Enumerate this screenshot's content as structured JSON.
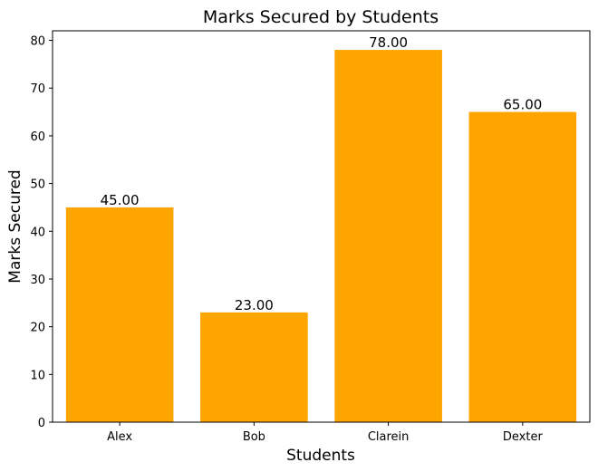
{
  "chart_data": {
    "type": "bar",
    "title": "Marks Secured by Students",
    "xlabel": "Students",
    "ylabel": "Marks Secured",
    "categories": [
      "Alex",
      "Bob",
      "Clarein",
      "Dexter"
    ],
    "values": [
      45,
      23,
      78,
      65
    ],
    "value_labels": [
      "45.00",
      "23.00",
      "78.00",
      "65.00"
    ],
    "ylim": [
      0,
      82
    ],
    "yticks": [
      0,
      10,
      20,
      30,
      40,
      50,
      60,
      70,
      80
    ],
    "bar_color": "#FFA500",
    "grid": false,
    "legend": "none"
  }
}
